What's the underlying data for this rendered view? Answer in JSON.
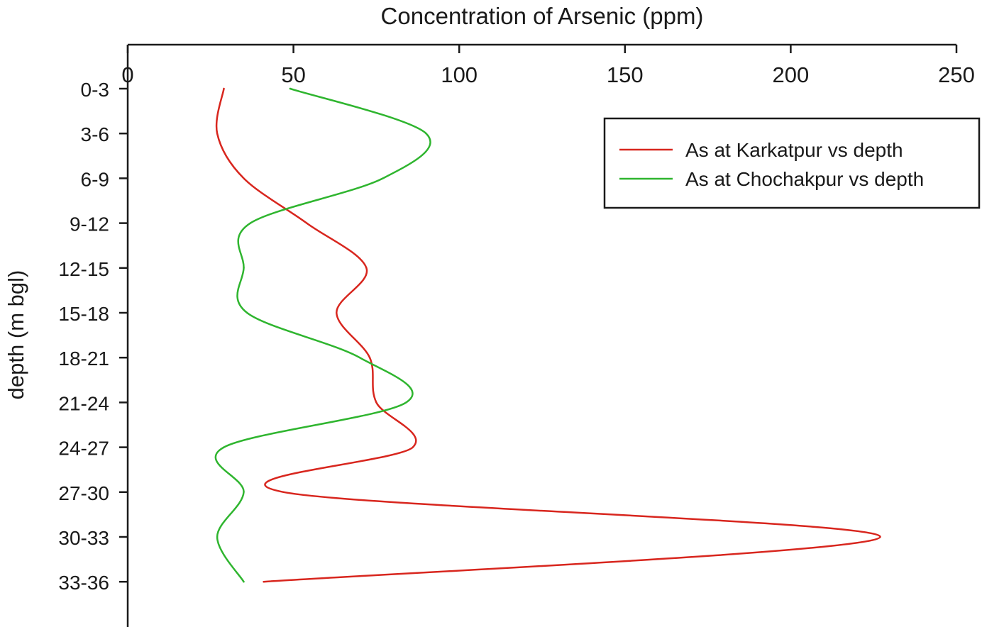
{
  "chart_data": {
    "type": "line",
    "title": "Concentration of Arsenic (ppm)",
    "xlabel": "Concentration of Arsenic (ppm)",
    "ylabel": "depth (m bgl)",
    "xlim": [
      0,
      250
    ],
    "x_ticks": [
      0,
      50,
      100,
      150,
      200,
      250
    ],
    "x_axis_position": "top",
    "categories": [
      "0-3",
      "3-6",
      "6-9",
      "9-12",
      "12-15",
      "15-18",
      "18-21",
      "21-24",
      "24-27",
      "27-30",
      "30-33",
      "33-36"
    ],
    "grid": false,
    "legend_position": "top-right",
    "series": [
      {
        "name": "As at Karkatpur vs depth",
        "color": "#d8261e",
        "values": [
          29,
          27,
          35,
          54,
          72,
          63,
          73,
          75,
          86,
          47,
          227,
          41
        ]
      },
      {
        "name": "As at Chochakpur vs depth",
        "color": "#2fb52f",
        "values": [
          49,
          90,
          77,
          37,
          35,
          36,
          70,
          84,
          29,
          35,
          27,
          35
        ]
      }
    ]
  }
}
